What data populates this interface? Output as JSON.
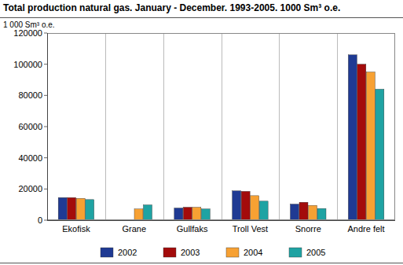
{
  "chart_data": {
    "type": "bar",
    "title": "Total production natural gas. January - December. 1993-2005. 1000 Sm³ o.e.",
    "y_label": "1 000 Sm³ o.e.",
    "categories": [
      "Ekofisk",
      "Grane",
      "Gullfaks",
      "Troll Vest",
      "Snorre",
      "Andre felt"
    ],
    "series": [
      {
        "name": "2002",
        "color": "#1f3a93",
        "values": [
          14500,
          0,
          7800,
          18800,
          10300,
          106000
        ]
      },
      {
        "name": "2003",
        "color": "#a30b0b",
        "values": [
          14500,
          0,
          8300,
          18500,
          11500,
          100000
        ]
      },
      {
        "name": "2004",
        "color": "#f7a133",
        "values": [
          14000,
          7200,
          8300,
          15700,
          9500,
          95000
        ]
      },
      {
        "name": "2005",
        "color": "#1fa3a3",
        "values": [
          13200,
          9800,
          7200,
          12200,
          7500,
          84000
        ]
      }
    ],
    "ylim": [
      0,
      120000
    ],
    "yticks": [
      0,
      20000,
      40000,
      60000,
      80000,
      100000,
      120000
    ],
    "grid": true,
    "legend": "bottom"
  }
}
